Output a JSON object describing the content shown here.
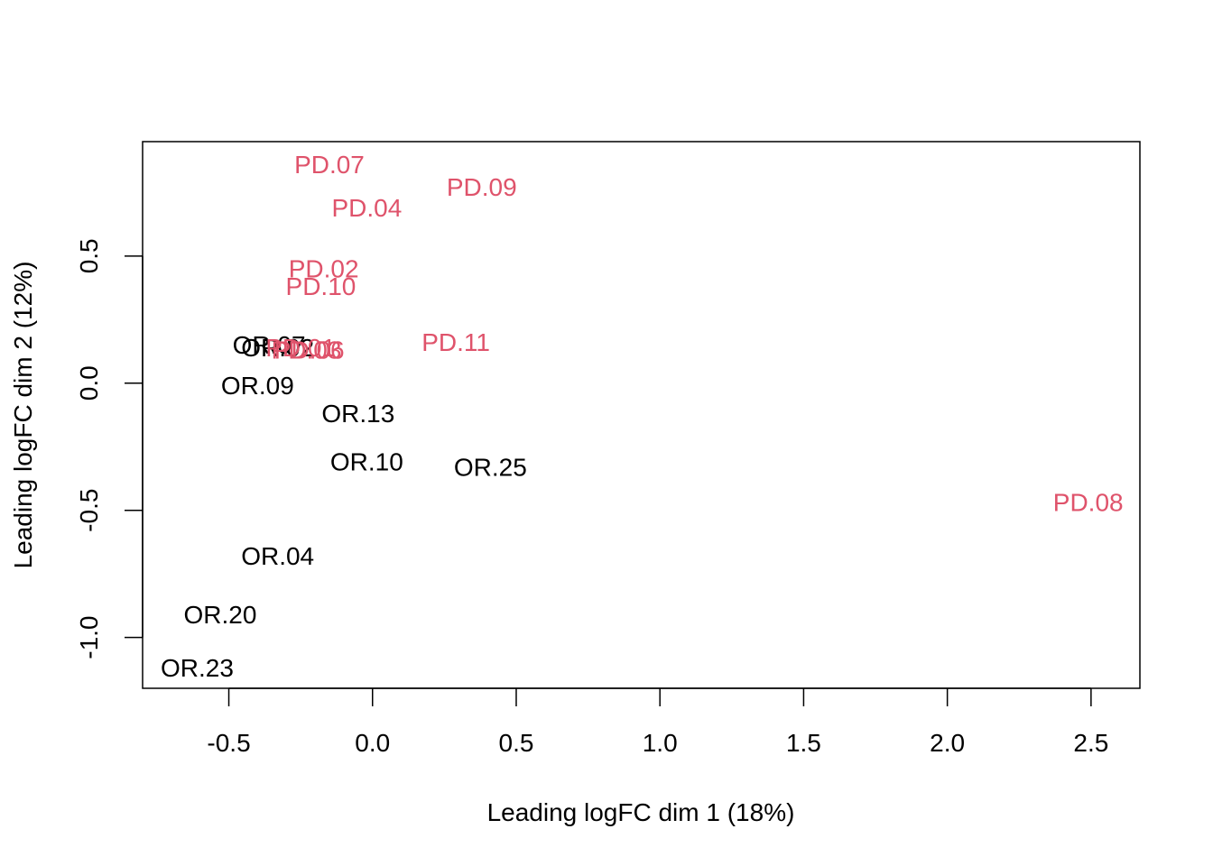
{
  "chart_data": {
    "type": "scatter",
    "title": "",
    "xlabel": "Leading logFC dim 1 (18%)",
    "ylabel": "Leading logFC dim 2 (12%)",
    "xlim": [
      -0.8,
      2.67
    ],
    "ylim": [
      -1.2,
      0.95
    ],
    "x_ticks": [
      -0.5,
      0.0,
      0.5,
      1.0,
      1.5,
      2.0,
      2.5
    ],
    "x_tick_labels": [
      "-0.5",
      "0.0",
      "0.5",
      "1.0",
      "1.5",
      "2.0",
      "2.5"
    ],
    "y_ticks": [
      -1.0,
      -0.5,
      0.0,
      0.5
    ],
    "y_tick_labels": [
      "-1.0",
      "-0.5",
      "0.0",
      "0.5"
    ],
    "grid": false,
    "legend": "none",
    "marker": "text labels",
    "groups": {
      "OR": {
        "color": "#000000"
      },
      "PD": {
        "color": "#DF536B"
      }
    },
    "points": [
      {
        "label": "PD.07",
        "group": "PD",
        "x": -0.15,
        "y": 0.86
      },
      {
        "label": "PD.09",
        "group": "PD",
        "x": 0.38,
        "y": 0.77
      },
      {
        "label": "PD.04",
        "group": "PD",
        "x": -0.02,
        "y": 0.69
      },
      {
        "label": "PD.02",
        "group": "PD",
        "x": -0.17,
        "y": 0.45
      },
      {
        "label": "PD.10",
        "group": "PD",
        "x": -0.18,
        "y": 0.38
      },
      {
        "label": "OR.07",
        "group": "OR",
        "x": -0.36,
        "y": 0.15
      },
      {
        "label": "OR.02",
        "group": "OR",
        "x": -0.33,
        "y": 0.14
      },
      {
        "label": "PD.01",
        "group": "PD",
        "x": -0.25,
        "y": 0.14
      },
      {
        "label": "PD.03",
        "group": "PD",
        "x": -0.23,
        "y": 0.13
      },
      {
        "label": "PD.06",
        "group": "PD",
        "x": -0.22,
        "y": 0.13
      },
      {
        "label": "PD.11",
        "group": "PD",
        "x": 0.29,
        "y": 0.16
      },
      {
        "label": "OR.09",
        "group": "OR",
        "x": -0.4,
        "y": -0.01
      },
      {
        "label": "OR.13",
        "group": "OR",
        "x": -0.05,
        "y": -0.12
      },
      {
        "label": "OR.10",
        "group": "OR",
        "x": -0.02,
        "y": -0.31
      },
      {
        "label": "OR.25",
        "group": "OR",
        "x": 0.41,
        "y": -0.33
      },
      {
        "label": "PD.08",
        "group": "PD",
        "x": 2.49,
        "y": -0.47
      },
      {
        "label": "OR.04",
        "group": "OR",
        "x": -0.33,
        "y": -0.68
      },
      {
        "label": "OR.20",
        "group": "OR",
        "x": -0.53,
        "y": -0.91
      },
      {
        "label": "OR.23",
        "group": "OR",
        "x": -0.61,
        "y": -1.12
      }
    ]
  }
}
